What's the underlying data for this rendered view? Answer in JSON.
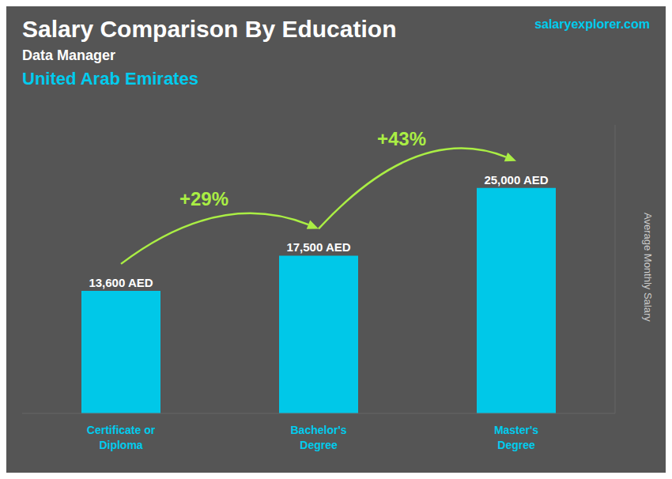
{
  "chart_data": {
    "type": "bar",
    "title": "Salary Comparison By Education",
    "subtitle": [
      "Data Manager",
      "United Arab Emirates"
    ],
    "ylabel": "Average Monthly Salary",
    "categories": [
      "Certificate or\nDiploma",
      "Bachelor's\nDegree",
      "Master's\nDegree"
    ],
    "values": [
      13600,
      17500,
      25000
    ],
    "value_labels": [
      "13,600 AED",
      "17,500 AED",
      "25,000 AED"
    ],
    "data_labels": true,
    "color": "#00c8e8",
    "ylim": [
      0,
      32000
    ],
    "tick_labels": "x",
    "grid": false,
    "annotations": [
      {
        "text": "+29%",
        "from": "Certificate or\nDiploma",
        "to": "Bachelor's\nDegree"
      },
      {
        "text": "+43%",
        "from": "Bachelor's\nDegree",
        "to": "Master's\nDegree"
      },
      {
        "text": "salaryexplorer.com"
      }
    ]
  }
}
